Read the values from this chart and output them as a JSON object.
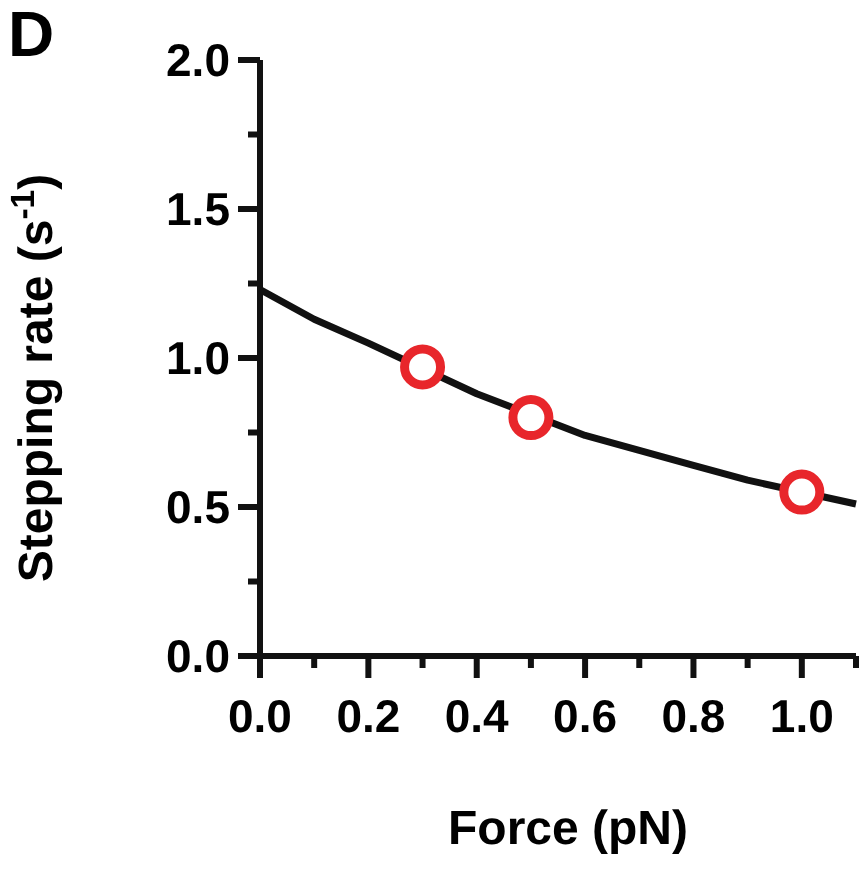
{
  "chart_data": {
    "type": "scatter",
    "xlabel": "Force (pN)",
    "ylabel": "Stepping rate (s$^{-1}$)",
    "annotations": [
      "D"
    ],
    "xlim": [
      0,
      1.1
    ],
    "ylim": [
      0,
      2
    ],
    "xticks": [
      {
        "value": 0,
        "label": "0.0"
      },
      {
        "value": 0.1,
        "label": null
      },
      {
        "value": 0.2,
        "label": "0.2"
      },
      {
        "value": 0.3,
        "label": null
      },
      {
        "value": 0.4,
        "label": "0.4"
      },
      {
        "value": 0.5,
        "label": null
      },
      {
        "value": 0.6,
        "label": "0.6"
      },
      {
        "value": 0.7,
        "label": null
      },
      {
        "value": 0.8,
        "label": "0.8"
      },
      {
        "value": 0.9,
        "label": null
      },
      {
        "value": 1,
        "label": "1.0"
      },
      {
        "value": 1.1,
        "label": null
      }
    ],
    "yticks": [
      {
        "value": 0,
        "label": "0.0"
      },
      {
        "value": 0.25,
        "label": null
      },
      {
        "value": 0.5,
        "label": "0.5"
      },
      {
        "value": 0.75,
        "label": null
      },
      {
        "value": 1,
        "label": "1.0"
      },
      {
        "value": 1.25,
        "label": null
      },
      {
        "value": 1.5,
        "label": "1.5"
      },
      {
        "value": 1.75,
        "label": null
      },
      {
        "value": 2,
        "label": "2.0"
      }
    ],
    "grid": false,
    "series": [
      {
        "type": "line",
        "color": "#111111",
        "marker": "none",
        "line_style": "solid",
        "x": [
          0,
          0.1,
          0.2,
          0.4,
          0.6,
          0.7,
          0.8,
          0.9,
          1.1
        ],
        "values": [
          1.23,
          1.13,
          1.05,
          0.88,
          0.74,
          0.69,
          0.64,
          0.59,
          0.51
        ]
      },
      {
        "color": "#e8262b",
        "marker": "circle",
        "x": [
          0.3,
          0.5,
          1
        ],
        "values": [
          0.97,
          0.8,
          0.55
        ]
      }
    ]
  }
}
